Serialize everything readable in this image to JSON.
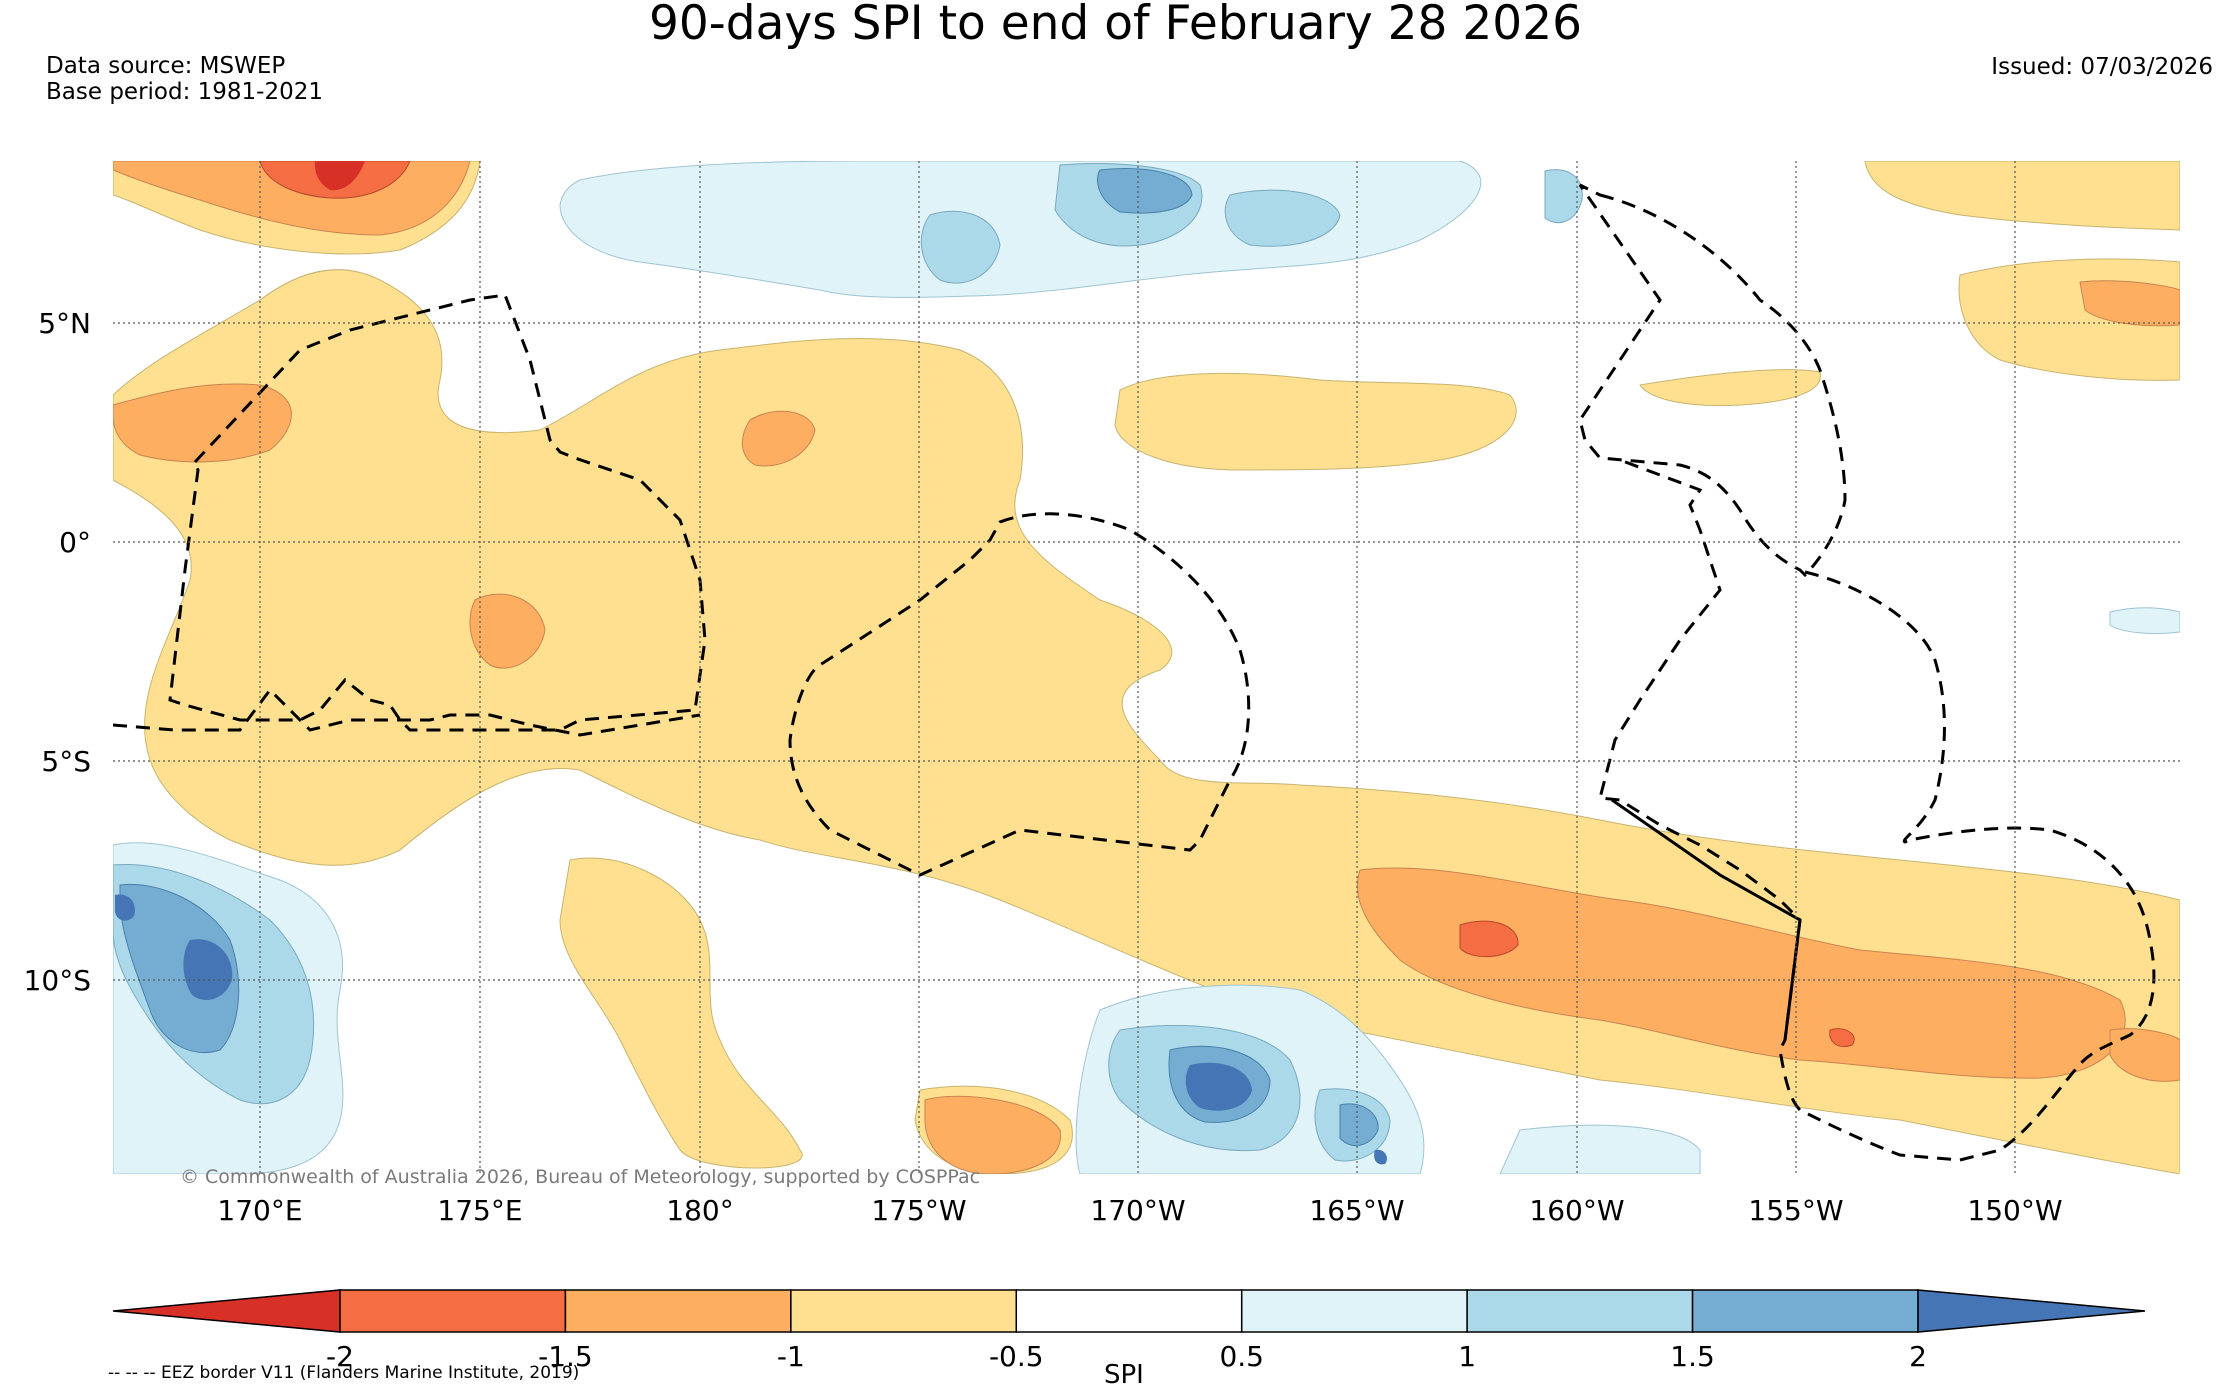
{
  "title": "90-days SPI to end of February 28 2026",
  "data_source": "Data source: MSWEP",
  "base_period": "Base period: 1981-2021",
  "issued": "Issued: 07/03/2026",
  "copyright": "© Commonwealth of Australia 2026, Bureau of Meteorology, supported by COSPPac",
  "lat_labels": [
    "5°N",
    "0°",
    "5°S",
    "10°S"
  ],
  "lon_labels": [
    "170°E",
    "175°E",
    "180°",
    "175°W",
    "170°W",
    "165°W",
    "160°W",
    "155°W",
    "150°W"
  ],
  "colorbar": {
    "label": "SPI",
    "ticks": [
      "-2",
      "-1.5",
      "-1",
      "-0.5",
      "0.5",
      "1",
      "1.5",
      "2"
    ],
    "colors": [
      "#d73027",
      "#f46d43",
      "#fdae61",
      "#fee090",
      "#ffffff",
      "#e0f3f8",
      "#abd9e9",
      "#74add1",
      "#4575b4"
    ]
  },
  "legend_note": "-- -- -- EEZ border V11 (Flanders Marine Institute, 2019)"
}
